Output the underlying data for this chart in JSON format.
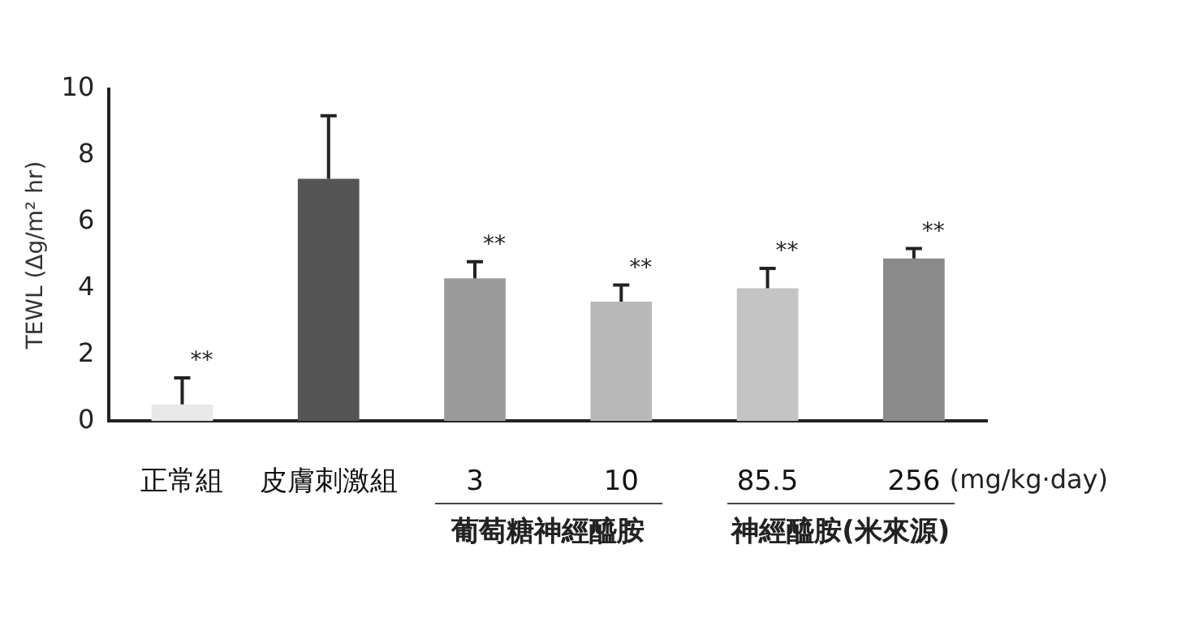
{
  "chart_data": {
    "type": "bar",
    "ylabel": "TEWL (Δg/m² hr)",
    "categories": [
      "正常組",
      "皮膚刺激組",
      "3",
      "10",
      "85.5",
      "256"
    ],
    "values": [
      0.5,
      7.3,
      4.3,
      3.6,
      4.0,
      4.9
    ],
    "colors": [
      "#e8e8e8",
      "#555555",
      "#9a9a9a",
      "#b8b8b8",
      "#c4c4c4",
      "#8a8a8a"
    ],
    "errors": [
      [
        0.5,
        1.3
      ],
      [
        7.3,
        9.2
      ],
      [
        4.3,
        4.8
      ],
      [
        3.6,
        4.1
      ],
      [
        4.0,
        4.6
      ],
      [
        4.9,
        5.2
      ]
    ],
    "ylim": [
      0,
      10
    ],
    "yticks": [
      0,
      2,
      4,
      6,
      8,
      10
    ],
    "grid": false,
    "legend": false,
    "annotations": [
      {
        "text": "**",
        "x": "正常組",
        "y": 1.3
      },
      {
        "text": "**",
        "x": "3",
        "y": 4.8
      },
      {
        "text": "**",
        "x": "10",
        "y": 4.1
      },
      {
        "text": "**",
        "x": "85.5",
        "y": 4.6
      },
      {
        "text": "**",
        "x": "256",
        "y": 5.2
      },
      "(mg/kg·day)",
      "葡萄糖神經醯胺",
      "神經醯胺(米來源)"
    ]
  }
}
